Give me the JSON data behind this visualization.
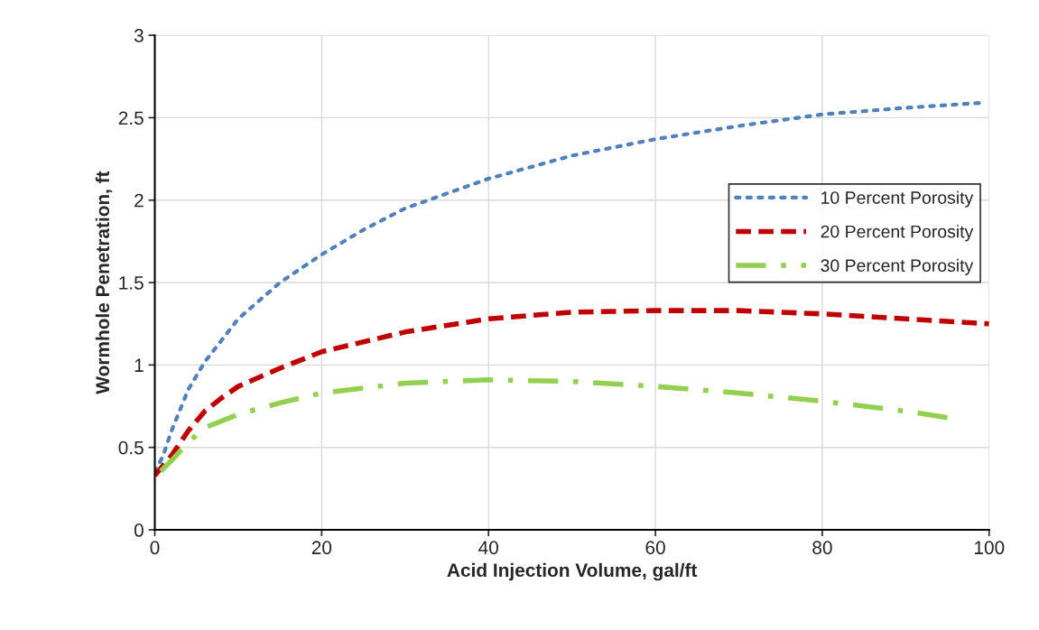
{
  "chart_data": {
    "type": "line",
    "xlabel": "Acid Injection Volume, gal/ft",
    "ylabel": "Wormhole Penetration, ft",
    "xlim": [
      0,
      100
    ],
    "xticks": [
      0,
      20,
      40,
      60,
      80,
      100
    ],
    "ylim": [
      0,
      3
    ],
    "yticks": [
      0,
      0.5,
      1,
      1.5,
      2,
      2.5,
      3
    ],
    "grid": true,
    "legend": "right",
    "marker": "none",
    "series": [
      {
        "name": "10 Percent Porosity",
        "color": "#4f81bd",
        "line_style": "dotted",
        "x": [
          0,
          1,
          2,
          4,
          6,
          8,
          10,
          15,
          20,
          25,
          30,
          40,
          50,
          60,
          70,
          80,
          90,
          99
        ],
        "values": [
          0.35,
          0.45,
          0.6,
          0.85,
          1.02,
          1.15,
          1.28,
          1.5,
          1.67,
          1.82,
          1.95,
          2.13,
          2.27,
          2.37,
          2.45,
          2.52,
          2.56,
          2.59
        ]
      },
      {
        "name": "20 Percent Porosity",
        "color": "#c00000",
        "line_style": "dashed",
        "x": [
          0,
          2,
          4,
          6,
          8,
          10,
          15,
          20,
          30,
          40,
          50,
          60,
          70,
          80,
          90,
          100
        ],
        "values": [
          0.33,
          0.45,
          0.6,
          0.72,
          0.8,
          0.87,
          0.98,
          1.08,
          1.2,
          1.28,
          1.32,
          1.33,
          1.33,
          1.31,
          1.28,
          1.25
        ]
      },
      {
        "name": "30 Percent Porosity",
        "color": "#92d050",
        "line_style": "dashdot",
        "x": [
          0,
          2,
          4,
          6,
          10,
          15,
          20,
          30,
          40,
          50,
          60,
          70,
          80,
          90,
          95
        ],
        "values": [
          0.32,
          0.42,
          0.53,
          0.62,
          0.7,
          0.77,
          0.83,
          0.89,
          0.91,
          0.9,
          0.87,
          0.83,
          0.78,
          0.72,
          0.68
        ]
      }
    ]
  }
}
